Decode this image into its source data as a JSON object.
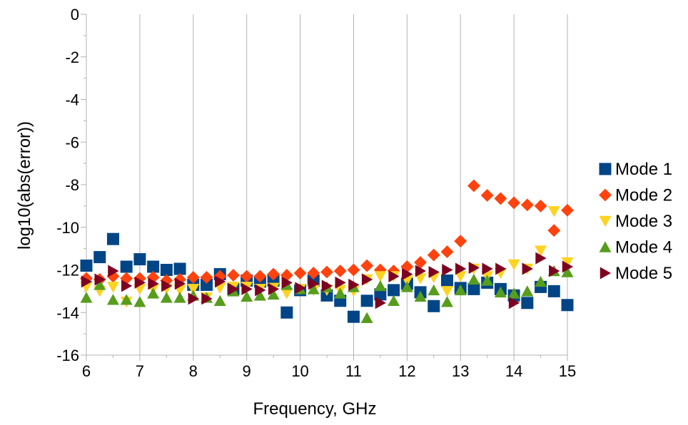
{
  "chart_data": {
    "type": "scatter",
    "xlabel": "Frequency, GHz",
    "ylabel": "log10(abs(error))",
    "xlim": [
      6,
      15
    ],
    "ylim": [
      -16,
      0
    ],
    "xticks": [
      6,
      7,
      8,
      9,
      10,
      11,
      12,
      13,
      14,
      15
    ],
    "yticks": [
      0,
      -2,
      -4,
      -6,
      -8,
      -10,
      -12,
      -14,
      -16
    ],
    "grid": "vertical",
    "legend": "right",
    "x": [
      6,
      6.25,
      6.5,
      6.75,
      7,
      7.25,
      7.5,
      7.75,
      8,
      8.25,
      8.5,
      8.75,
      9,
      9.25,
      9.5,
      9.75,
      10,
      10.25,
      10.5,
      10.75,
      11,
      11.25,
      11.5,
      11.75,
      12,
      12.25,
      12.5,
      12.75,
      13,
      13.25,
      13.5,
      13.75,
      14,
      14.25,
      14.5,
      14.75,
      15
    ],
    "series": [
      {
        "name": "Mode 1",
        "marker": "square",
        "color": "#004586",
        "values": [
          -11.8,
          -11.4,
          -10.55,
          -11.85,
          -11.5,
          -11.85,
          -12.0,
          -11.95,
          -12.7,
          -12.7,
          -12.2,
          -12.9,
          -12.5,
          -12.55,
          -12.5,
          -14.0,
          -12.95,
          -12.5,
          -13.2,
          -13.45,
          -14.2,
          -13.45,
          -13.15,
          -12.95,
          -12.65,
          -13.05,
          -13.7,
          -12.5,
          -12.85,
          -12.9,
          -12.6,
          -12.9,
          -13.2,
          -13.55,
          -12.8,
          -13.0,
          -13.65
        ]
      },
      {
        "name": "Mode 2",
        "marker": "diamond",
        "color": "#ff420e",
        "values": [
          -12.4,
          -12.45,
          -12.3,
          -12.4,
          -12.4,
          -12.35,
          -12.5,
          -12.45,
          -12.35,
          -12.35,
          -12.3,
          -12.25,
          -12.3,
          -12.3,
          -12.2,
          -12.25,
          -12.15,
          -12.15,
          -12.1,
          -12.05,
          -12.0,
          -11.8,
          -12.0,
          -12.05,
          -11.85,
          -11.65,
          -11.3,
          -11.15,
          -10.65,
          -8.05,
          -8.5,
          -8.65,
          -8.85,
          -8.95,
          -9.0,
          -10.15,
          -9.2
        ]
      },
      {
        "name": "Mode 3",
        "marker": "triangle-down",
        "color": "#ffd320",
        "values": [
          -12.8,
          -13.0,
          -12.8,
          -13.5,
          -12.9,
          -12.9,
          -12.9,
          -12.95,
          -12.9,
          -13.3,
          -12.85,
          -12.8,
          -12.8,
          -12.9,
          -12.85,
          -13.1,
          -12.9,
          -12.95,
          -12.95,
          -12.95,
          -13.0,
          -12.45,
          -12.3,
          -12.3,
          -12.5,
          -12.4,
          -12.35,
          -13.0,
          -12.3,
          -11.95,
          -12.3,
          -12.15,
          -11.75,
          -11.95,
          -11.1,
          -9.25,
          -11.65
        ]
      },
      {
        "name": "Mode 4",
        "marker": "triangle-up",
        "color": "#579d1c",
        "values": [
          -13.3,
          -12.7,
          -13.4,
          -13.4,
          -13.5,
          -13.1,
          -13.3,
          -13.3,
          -13.2,
          -13.3,
          -13.45,
          -13.0,
          -13.25,
          -13.2,
          -13.15,
          -12.7,
          -12.9,
          -12.9,
          -12.8,
          -13.1,
          -12.8,
          -14.25,
          -12.75,
          -13.45,
          -12.8,
          -13.25,
          -12.95,
          -13.5,
          -12.95,
          -12.45,
          -12.5,
          -13.05,
          -13.1,
          -13.0,
          -12.55,
          -12.05,
          -12.1
        ]
      },
      {
        "name": "Mode 5",
        "marker": "triangle-right",
        "color": "#7e0021",
        "values": [
          -12.55,
          -12.45,
          -12.05,
          -12.75,
          -12.6,
          -12.65,
          -12.75,
          -12.65,
          -13.35,
          -13.35,
          -12.55,
          -12.9,
          -12.9,
          -12.95,
          -12.9,
          -12.6,
          -12.85,
          -12.65,
          -12.75,
          -12.6,
          -12.7,
          -12.45,
          -13.55,
          -12.3,
          -12.2,
          -12.05,
          -12.1,
          -12.0,
          -11.95,
          -11.9,
          -11.95,
          -11.95,
          -13.55,
          -11.95,
          -11.45,
          -12.05,
          -11.85
        ]
      }
    ]
  }
}
